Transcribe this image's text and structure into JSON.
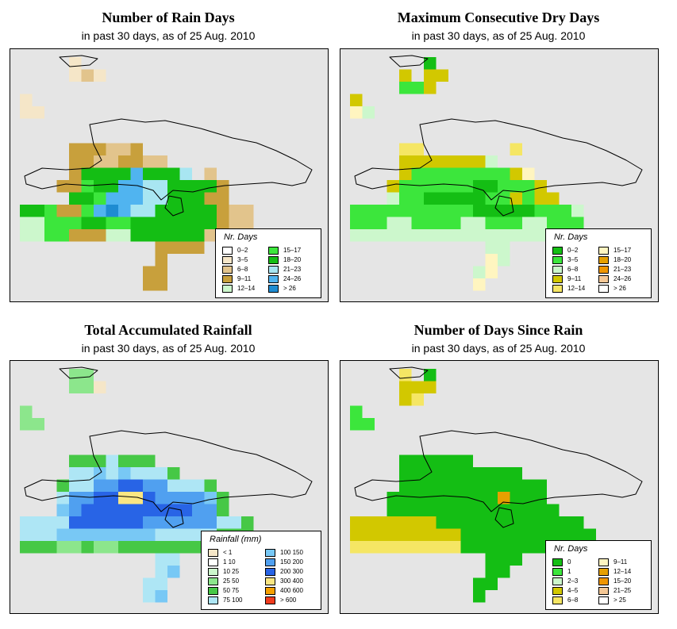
{
  "panels": [
    {
      "title": "Number of Rain Days",
      "subtitle": "in past 30 days, as of  25 Aug. 2010",
      "legend_title": "Nr. Days",
      "legend": [
        {
          "label": "0–2",
          "color": "#ffffff"
        },
        {
          "label": "3–5",
          "color": "#f5e6c8"
        },
        {
          "label": "6–8",
          "color": "#e2c48c"
        },
        {
          "label": "9–11",
          "color": "#c8a03c"
        },
        {
          "label": "12–14",
          "color": "#ccf7cc"
        },
        {
          "label": "15–17",
          "color": "#3ce63c"
        },
        {
          "label": "18–20",
          "color": "#14be14"
        },
        {
          "label": "21–23",
          "color": "#a8e6f2"
        },
        {
          "label": "24–26",
          "color": "#50b4f0"
        },
        {
          "label": "> 26",
          "color": "#1e8cd2"
        }
      ]
    },
    {
      "title": "Maximum Consecutive Dry Days",
      "subtitle": "in past 30 days, as of  25 Aug. 2010",
      "legend_title": "Nr. Days",
      "legend": [
        {
          "label": "0–2",
          "color": "#14be14"
        },
        {
          "label": "3–5",
          "color": "#3ce63c"
        },
        {
          "label": "6–8",
          "color": "#ccf7cc"
        },
        {
          "label": "9–11",
          "color": "#d2c800"
        },
        {
          "label": "12–14",
          "color": "#f5e664"
        },
        {
          "label": "15–17",
          "color": "#fff5c0"
        },
        {
          "label": "18–20",
          "color": "#e6a000"
        },
        {
          "label": "21–23",
          "color": "#f09600"
        },
        {
          "label": "24–26",
          "color": "#f5c896"
        },
        {
          "label": "> 26",
          "color": "#ffffff"
        }
      ]
    },
    {
      "title": "Total Accumulated Rainfall",
      "subtitle": "in past 30 days, as of  25 Aug. 2010",
      "legend_title": "Rainfall (mm)",
      "legend": [
        {
          "label": "< 1",
          "color": "#f5e6c8"
        },
        {
          "label": "1   10",
          "color": "#ffffff"
        },
        {
          "label": "10   25",
          "color": "#ccf7cc"
        },
        {
          "label": "25   50",
          "color": "#8ce68c"
        },
        {
          "label": "50   75",
          "color": "#46c846"
        },
        {
          "label": "75   100",
          "color": "#aee6f5"
        },
        {
          "label": "100   150",
          "color": "#78c8f5"
        },
        {
          "label": "150   200",
          "color": "#50a0f0"
        },
        {
          "label": "200   300",
          "color": "#2864e6"
        },
        {
          "label": "300   400",
          "color": "#fae682"
        },
        {
          "label": "400   600",
          "color": "#f5a000"
        },
        {
          "label": "> 600",
          "color": "#f03c1e"
        }
      ]
    },
    {
      "title": "Number of Days Since Rain",
      "subtitle": "in past 30 days, as of  25 Aug. 2010",
      "legend_title": "Nr. Days",
      "legend": [
        {
          "label": "0",
          "color": "#14be14"
        },
        {
          "label": "1",
          "color": "#3ce63c"
        },
        {
          "label": "2–3",
          "color": "#ccf7cc"
        },
        {
          "label": "4–5",
          "color": "#d2c800"
        },
        {
          "label": "6–8",
          "color": "#f5e664"
        },
        {
          "label": "9–11",
          "color": "#fff5c0"
        },
        {
          "label": "12–14",
          "color": "#e6a000"
        },
        {
          "label": "15–20",
          "color": "#f09600"
        },
        {
          "label": "21–25",
          "color": "#f5c896"
        },
        {
          "label": "> 25",
          "color": "#ffffff"
        }
      ]
    }
  ]
}
